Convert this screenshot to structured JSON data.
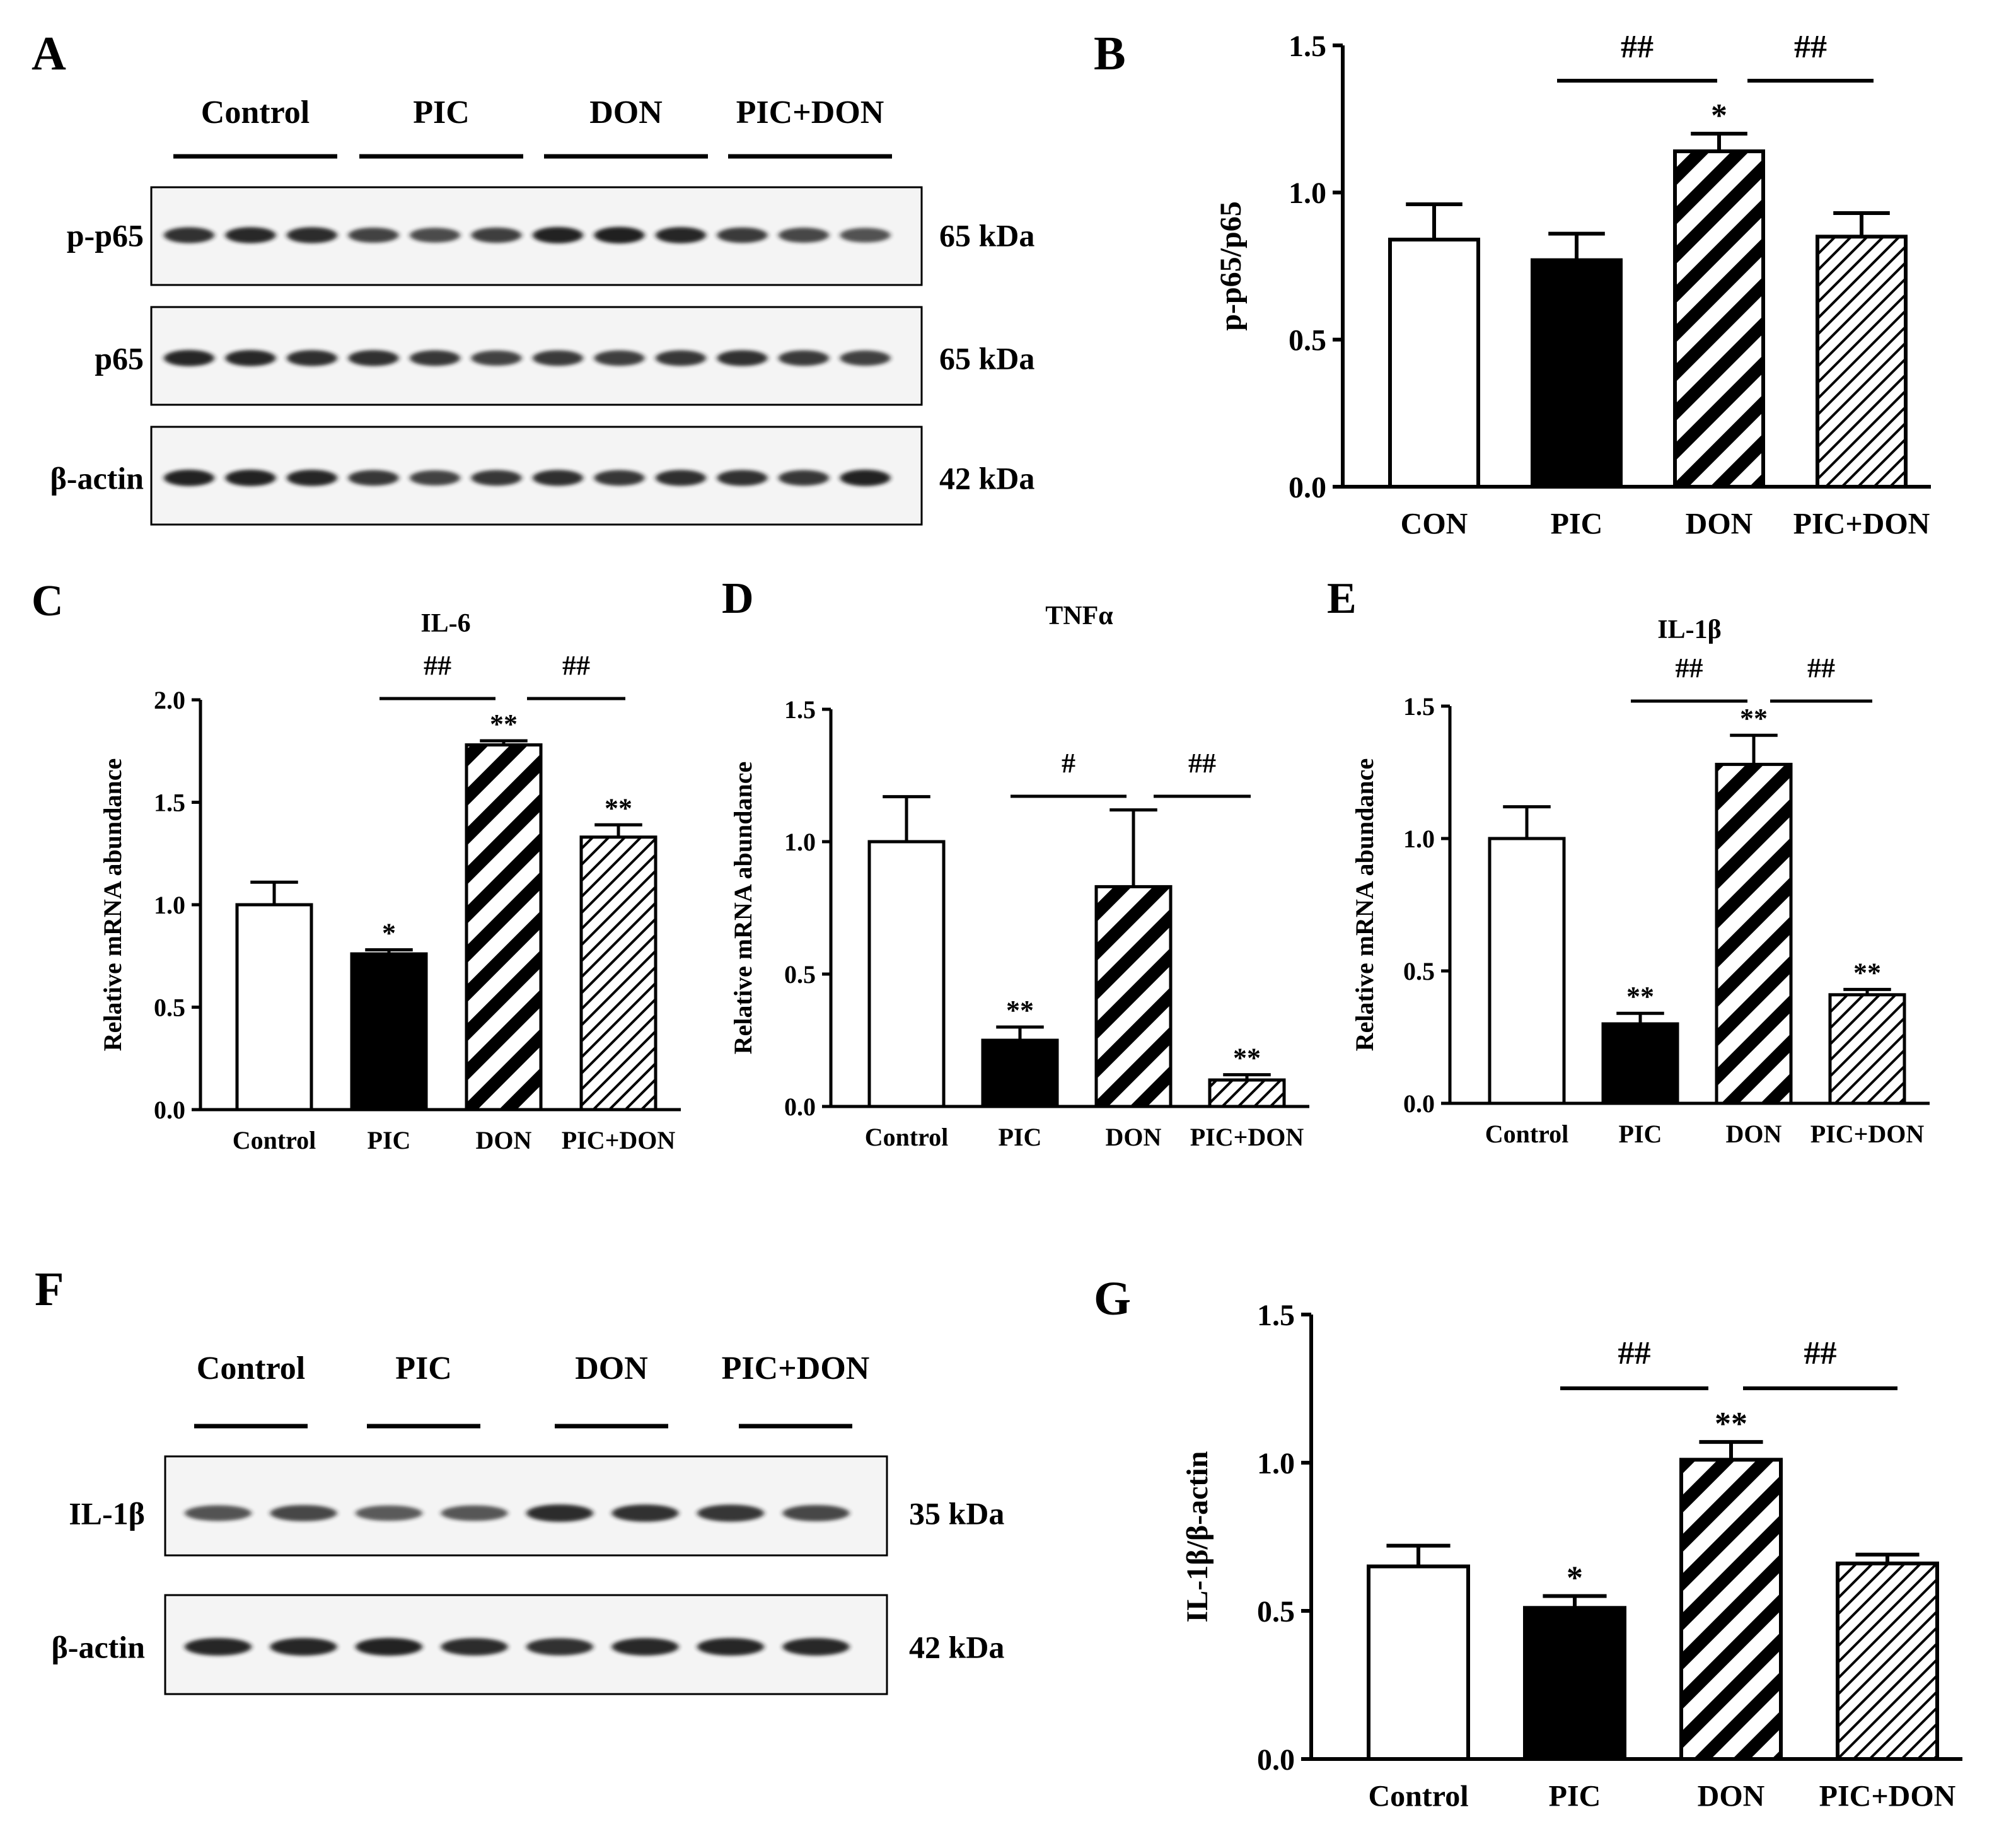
{
  "colors": {
    "ink": "#000000",
    "background": "#ffffff",
    "band": "#1a1a1a",
    "membrane": "#f4f4f4"
  },
  "panel_A": {
    "letter": "A",
    "groups": [
      "Control",
      "PIC",
      "DON",
      "PIC+DON"
    ],
    "blots": [
      {
        "label": "p-p65",
        "kda": "65 kDa",
        "intensity": [
          0.85,
          0.9,
          0.88,
          0.72,
          0.66,
          0.75,
          0.95,
          0.97,
          0.93,
          0.78,
          0.7,
          0.62
        ]
      },
      {
        "label": "p65",
        "kda": "65 kDa",
        "intensity": [
          0.92,
          0.9,
          0.86,
          0.85,
          0.8,
          0.72,
          0.78,
          0.76,
          0.8,
          0.84,
          0.78,
          0.74
        ]
      },
      {
        "label": "β-actin",
        "kda": "42 kDa",
        "intensity": [
          0.95,
          0.96,
          0.93,
          0.8,
          0.72,
          0.8,
          0.86,
          0.8,
          0.86,
          0.84,
          0.8,
          0.95
        ]
      }
    ]
  },
  "panel_F": {
    "letter": "F",
    "groups": [
      "Control",
      "PIC",
      "DON",
      "PIC+DON"
    ],
    "blots": [
      {
        "label": "IL-1β",
        "kda": "35 kDa",
        "intensity": [
          0.6,
          0.7,
          0.55,
          0.58,
          0.88,
          0.85,
          0.82,
          0.7
        ]
      },
      {
        "label": "β-actin",
        "kda": "42 kDa",
        "intensity": [
          0.92,
          0.93,
          0.95,
          0.88,
          0.85,
          0.9,
          0.92,
          0.9
        ]
      }
    ]
  },
  "chart_data": [
    {
      "panel": "B",
      "type": "bar",
      "title": "",
      "xlabel": "",
      "ylabel": "p-p65/p65",
      "categories": [
        "CON",
        "PIC",
        "DON",
        "PIC+DON"
      ],
      "values": [
        0.84,
        0.77,
        1.14,
        0.85
      ],
      "errors": [
        0.12,
        0.09,
        0.06,
        0.08
      ],
      "stars": [
        "",
        "",
        "*",
        ""
      ],
      "comparisons": [
        {
          "from": 1,
          "to": 2,
          "label": "##"
        },
        {
          "from": 2,
          "to": 3,
          "label": "##"
        }
      ],
      "ylim": [
        0,
        1.5
      ],
      "yticks": [
        "0.0",
        "0.5",
        "1.0",
        "1.5"
      ]
    },
    {
      "panel": "C",
      "type": "bar",
      "title": "IL-6",
      "xlabel": "",
      "ylabel": "Relative mRNA abundance",
      "categories": [
        "Control",
        "PIC",
        "DON",
        "PIC+DON"
      ],
      "values": [
        1.0,
        0.76,
        1.78,
        1.33
      ],
      "errors": [
        0.11,
        0.02,
        0.02,
        0.06
      ],
      "stars": [
        "",
        "*",
        "**",
        "**"
      ],
      "comparisons": [
        {
          "from": 1,
          "to": 2,
          "label": "##"
        },
        {
          "from": 2,
          "to": 3,
          "label": "##"
        }
      ],
      "ylim": [
        0,
        2.0
      ],
      "yticks": [
        "0.0",
        "0.5",
        "1.0",
        "1.5",
        "2.0"
      ]
    },
    {
      "panel": "D",
      "type": "bar",
      "title": "TNFα",
      "xlabel": "",
      "ylabel": "Relative mRNA abundance",
      "categories": [
        "Control",
        "PIC",
        "DON",
        "PIC+DON"
      ],
      "values": [
        1.0,
        0.25,
        0.83,
        0.1
      ],
      "errors": [
        0.17,
        0.05,
        0.29,
        0.02
      ],
      "stars": [
        "",
        "**",
        "",
        "**"
      ],
      "comparisons": [
        {
          "from": 1,
          "to": 2,
          "label": "#"
        },
        {
          "from": 2,
          "to": 3,
          "label": "##"
        }
      ],
      "ylim": [
        0,
        1.5
      ],
      "yticks": [
        "0.0",
        "0.5",
        "1.0",
        "1.5"
      ]
    },
    {
      "panel": "E",
      "type": "bar",
      "title": "IL-1β",
      "xlabel": "",
      "ylabel": "Relative mRNA abundance",
      "categories": [
        "Control",
        "PIC",
        "DON",
        "PIC+DON"
      ],
      "values": [
        1.0,
        0.3,
        1.28,
        0.41
      ],
      "errors": [
        0.12,
        0.04,
        0.11,
        0.02
      ],
      "stars": [
        "",
        "**",
        "**",
        "**"
      ],
      "comparisons": [
        {
          "from": 1,
          "to": 2,
          "label": "##"
        },
        {
          "from": 2,
          "to": 3,
          "label": "##"
        }
      ],
      "ylim": [
        0,
        1.5
      ],
      "yticks": [
        "0.0",
        "0.5",
        "1.0",
        "1.5"
      ]
    },
    {
      "panel": "G",
      "type": "bar",
      "title": "",
      "xlabel": "",
      "ylabel": "IL-1β/β-actin",
      "categories": [
        "Control",
        "PIC",
        "DON",
        "PIC+DON"
      ],
      "values": [
        0.65,
        0.51,
        1.01,
        0.66
      ],
      "errors": [
        0.07,
        0.04,
        0.06,
        0.03
      ],
      "stars": [
        "",
        "*",
        "**",
        ""
      ],
      "comparisons": [
        {
          "from": 1,
          "to": 2,
          "label": "##"
        },
        {
          "from": 2,
          "to": 3,
          "label": "##"
        }
      ],
      "ylim": [
        0,
        1.5
      ],
      "yticks": [
        "0.0",
        "0.5",
        "1.0",
        "1.5"
      ]
    }
  ]
}
